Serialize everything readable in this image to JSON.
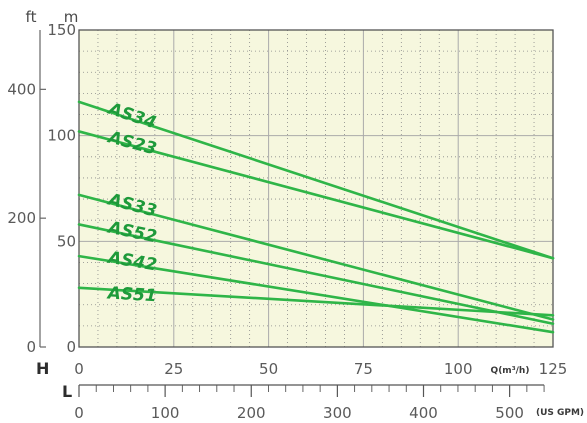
{
  "chart_data": {
    "type": "line",
    "title": "",
    "xlabel": "Q(m³/h)",
    "ylabel": "H",
    "x_axis": {
      "label": "Q(m³/h)",
      "range": [
        0,
        125
      ],
      "ticks": [
        "0",
        "25",
        "50",
        "75",
        "100",
        "125"
      ]
    },
    "y_axis_m": {
      "unit": "m",
      "range": [
        0,
        150
      ],
      "ticks": [
        "0",
        "50",
        "100",
        "150"
      ]
    },
    "y_axis_ft": {
      "unit": "ft",
      "ticks": [
        "0",
        "200",
        "400"
      ]
    },
    "secondary_x_axis": {
      "letter": "L",
      "unit": "(US GPM)",
      "ticks": [
        "0",
        "100",
        "200",
        "300",
        "400",
        "500"
      ]
    },
    "axis_letter_h": "H",
    "grid": true,
    "series": [
      {
        "name": "AS34",
        "x": [
          0,
          125
        ],
        "y": [
          116,
          42
        ]
      },
      {
        "name": "AS23",
        "x": [
          0,
          125
        ],
        "y": [
          102,
          42
        ]
      },
      {
        "name": "AS33",
        "x": [
          0,
          125
        ],
        "y": [
          72,
          13
        ]
      },
      {
        "name": "AS52",
        "x": [
          0,
          125
        ],
        "y": [
          58,
          11
        ]
      },
      {
        "name": "AS42",
        "x": [
          0,
          125
        ],
        "y": [
          43,
          7
        ]
      },
      {
        "name": "AS51",
        "x": [
          0,
          125
        ],
        "y": [
          28,
          15
        ]
      }
    ],
    "colors": {
      "line": "#2fb548",
      "label": "#1e9a3a",
      "plot_background": "#f6f7de",
      "grid_major": "#aaaaaa",
      "grid_minor": "#888888"
    }
  }
}
